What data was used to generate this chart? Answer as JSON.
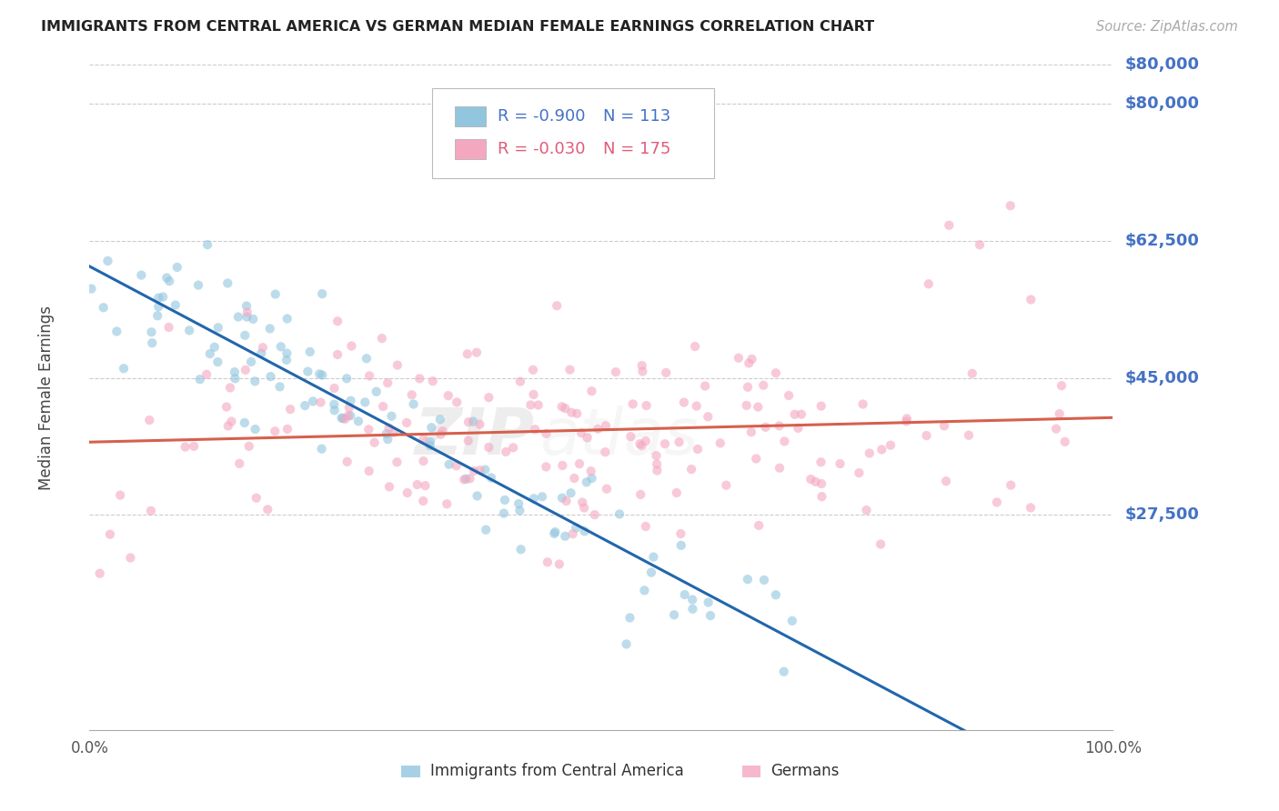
{
  "title": "IMMIGRANTS FROM CENTRAL AMERICA VS GERMAN MEDIAN FEMALE EARNINGS CORRELATION CHART",
  "source": "Source: ZipAtlas.com",
  "ylabel": "Median Female Earnings",
  "r_blue": -0.9,
  "n_blue": 113,
  "r_pink": -0.03,
  "n_pink": 175,
  "blue_color": "#92c5de",
  "pink_color": "#f4a8c0",
  "blue_line_color": "#2166ac",
  "pink_line_color": "#d6604d",
  "ytick_values": [
    27500,
    45000,
    62500,
    80000
  ],
  "ytick_labels": [
    "$27,500",
    "$45,000",
    "$62,500",
    "$80,000"
  ],
  "ymin": 0,
  "ymax": 85000,
  "xmin": 0.0,
  "xmax": 1.0,
  "watermark_zip": "ZIP",
  "watermark_atlas": "atlas",
  "background_color": "#ffffff",
  "grid_color": "#cccccc",
  "legend_label_blue": "Immigrants from Central America",
  "legend_label_pink": "Germans",
  "text_color_blue": "#4472c4",
  "text_color_pink": "#e05c7a"
}
